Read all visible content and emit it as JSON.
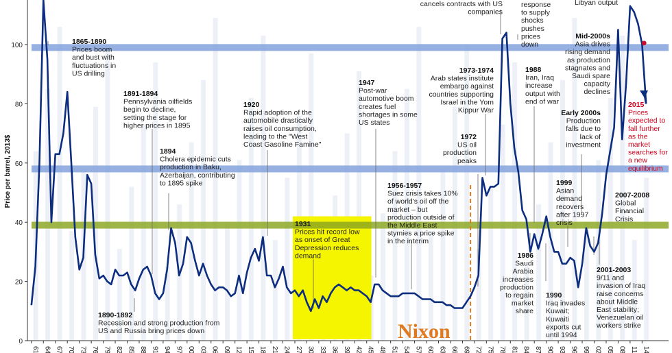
{
  "chart_data": {
    "type": "line",
    "ylabel": "Price per barrel, 2013$",
    "ylim": [
      0,
      113
    ],
    "xlim": [
      1860,
      2016
    ],
    "y_ticks": [
      0,
      20,
      40,
      60,
      80,
      100
    ],
    "x_tick_labels": [
      "61",
      "64",
      "67",
      "70",
      "73",
      "76",
      "79",
      "82",
      "85",
      "88",
      "91",
      "94",
      "97",
      "00",
      "03",
      "06",
      "09",
      "12",
      "15",
      "18",
      "21",
      "24",
      "27",
      "30",
      "33",
      "36",
      "39",
      "42",
      "45",
      "48",
      "51",
      "54",
      "57",
      "60",
      "63",
      "66",
      "69",
      "72",
      "75",
      "78",
      "81",
      "84",
      "87",
      "90",
      "93",
      "96",
      "99",
      "02",
      "05",
      "08",
      "11",
      "14"
    ],
    "x_tick_years": [
      1861,
      1864,
      1867,
      1870,
      1873,
      1876,
      1879,
      1882,
      1885,
      1888,
      1891,
      1894,
      1897,
      1900,
      1903,
      1906,
      1909,
      1912,
      1915,
      1918,
      1921,
      1924,
      1927,
      1930,
      1933,
      1936,
      1939,
      1942,
      1945,
      1948,
      1951,
      1954,
      1957,
      1960,
      1963,
      1966,
      1969,
      1972,
      1975,
      1978,
      1981,
      1984,
      1987,
      1990,
      1993,
      1996,
      1999,
      2002,
      2005,
      2008,
      2011,
      2014
    ],
    "series": [
      {
        "x": [
          1861,
          1862,
          1863,
          1864,
          1865,
          1866,
          1867,
          1868,
          1869,
          1870,
          1871,
          1872,
          1873,
          1874,
          1875,
          1876,
          1877,
          1878,
          1879,
          1880,
          1881,
          1882,
          1883,
          1884,
          1885,
          1886,
          1887,
          1888,
          1889,
          1890,
          1891,
          1892,
          1893,
          1894,
          1895,
          1896,
          1897,
          1898,
          1899,
          1900,
          1901,
          1902,
          1903,
          1904,
          1905,
          1906,
          1907,
          1908,
          1909,
          1910,
          1911,
          1912,
          1913,
          1914,
          1915,
          1916,
          1917,
          1918,
          1919,
          1920,
          1921,
          1922,
          1923,
          1924,
          1925,
          1926,
          1927,
          1928,
          1929,
          1930,
          1931,
          1932,
          1933,
          1934,
          1935,
          1936,
          1937,
          1938,
          1939,
          1940,
          1941,
          1942,
          1943,
          1944,
          1945,
          1946,
          1947,
          1948,
          1949,
          1950,
          1951,
          1952,
          1953,
          1954,
          1955,
          1956,
          1957,
          1958,
          1959,
          1960,
          1961,
          1962,
          1963,
          1964,
          1965,
          1966,
          1967,
          1968,
          1969,
          1970,
          1971,
          1972,
          1973,
          1974,
          1975,
          1976,
          1977,
          1978,
          1979,
          1980,
          1981,
          1982,
          1983,
          1984,
          1985,
          1986,
          1987,
          1988,
          1989,
          1990,
          1991,
          1992,
          1993,
          1994,
          1995,
          1996,
          1997,
          1998,
          1999,
          2000,
          2001,
          2002,
          2003,
          2004,
          2005,
          2006,
          2007,
          2008,
          2009,
          2010,
          2011,
          2012,
          2013,
          2014,
          2015
        ],
        "values": [
          12,
          25,
          60,
          115,
          95,
          40,
          63,
          63,
          70,
          84,
          60,
          35,
          24,
          28,
          56,
          53,
          29,
          21,
          22,
          20,
          19,
          24,
          22,
          22,
          23,
          19,
          17,
          21,
          24,
          25,
          22,
          16,
          14,
          16,
          24,
          38,
          33,
          22,
          26,
          35,
          33,
          27,
          22,
          26,
          22,
          19,
          17,
          18,
          18,
          17,
          15,
          16,
          22,
          16,
          23,
          28,
          31,
          27,
          35,
          22,
          22,
          18,
          21,
          25,
          18,
          16,
          17,
          15,
          17,
          13,
          10,
          14,
          11,
          15,
          13,
          16,
          18,
          19,
          18,
          17,
          18,
          17,
          17,
          16,
          15,
          13,
          19,
          19,
          17,
          16,
          15,
          15,
          15,
          16,
          16,
          16,
          16,
          15,
          14,
          14,
          14,
          13,
          13,
          13,
          12,
          12,
          11,
          11,
          11,
          13,
          15,
          18,
          22,
          55,
          49,
          52,
          52,
          53,
          102,
          104,
          80,
          65,
          57,
          44,
          41,
          30,
          36,
          31,
          36,
          42,
          35,
          30,
          30,
          26,
          26,
          28,
          27,
          18,
          26,
          38,
          32,
          30,
          33,
          43,
          56,
          64,
          72,
          105,
          68,
          87,
          113,
          111,
          107,
          100,
          80
        ]
      }
    ],
    "annotations": [
      {
        "title": "1865-1890",
        "lines": [
          "Prices boom",
          "and bust with",
          "fluctuations in",
          "US drilling"
        ]
      },
      {
        "title": "1891-1894",
        "lines": [
          "Pennsylvania oilfields",
          "begin to decline,",
          "setting the stage for",
          "higher prices in 1895"
        ]
      },
      {
        "title": "1894",
        "lines": [
          "Cholera epidemic cuts",
          "production in Baku,",
          "Azerbaijan, contributing",
          "to 1895 spike"
        ]
      },
      {
        "title": "1890-1892",
        "lines": [
          "Recession and strong production from",
          "US and Russia bring prices down"
        ]
      },
      {
        "title": "1920",
        "lines": [
          "Rapid adoption of the",
          "automobile drastically",
          "raises oil consumption,",
          "leading to the \"West",
          "Coast Gasoline Famine\""
        ]
      },
      {
        "title": "1931",
        "lines": [
          "Prices hit record low",
          "as onset of Great",
          "Depression reduces",
          "demand"
        ]
      },
      {
        "title": "1947",
        "lines": [
          "Post-war",
          "automotive boom",
          "creates fuel",
          "shortages in some",
          "US states"
        ]
      },
      {
        "title": "1956-1957",
        "lines": [
          "Suez crisis takes 10%",
          "of world's oil off the",
          "market – but",
          "production outside of",
          "the Middle East",
          "stymies a price spike",
          "in the interim"
        ]
      },
      {
        "title": "",
        "lines": [
          "cancels contracts with US",
          "companies"
        ]
      },
      {
        "title": "1973-1974",
        "lines": [
          "Arab states institute",
          "embargo against",
          "countries supporting",
          "Israel in the Yom",
          "Kippur War"
        ]
      },
      {
        "title": "1972",
        "lines": [
          "US oil",
          "production",
          "peaks"
        ]
      },
      {
        "title": "",
        "lines": [
          "response",
          "to supply",
          "shocks",
          "pushes",
          "prices",
          "down"
        ]
      },
      {
        "title": "1988",
        "lines": [
          "Iran, Iraq",
          "increase",
          "output with",
          "end of war"
        ]
      },
      {
        "title": "1986",
        "lines": [
          "Saudi",
          "Arabia",
          "increases",
          "production",
          "to regain",
          "market",
          "share"
        ]
      },
      {
        "title": "1990",
        "lines": [
          "Iraq invades",
          "Kuwait;",
          "Kuwaiti",
          "exports cut",
          "until 1994"
        ]
      },
      {
        "title": "1999",
        "lines": [
          "Asian",
          "demand",
          "recovers",
          "after 1997",
          "crisis"
        ]
      },
      {
        "title": "Early 2000s",
        "lines": [
          "Production",
          "falls due to",
          "lack of",
          "investment"
        ]
      },
      {
        "title": "",
        "lines": [
          "Libyan output"
        ]
      },
      {
        "title": "Mid-2000s",
        "lines": [
          "Asia drives",
          "rising demand",
          "as production",
          "stagnates and",
          "Saudi spare",
          "capacity",
          "declines"
        ]
      },
      {
        "title": "2015",
        "lines": [
          "Prices",
          "expected to",
          "fall further",
          "as the",
          "market",
          "searches for",
          "a new",
          "equilibrium"
        ]
      },
      {
        "title": "2007-2008",
        "lines": [
          "Global",
          "Financial",
          "Crisis"
        ]
      },
      {
        "title": "2001-2003",
        "lines": [
          "9/11 and",
          "invasion of Iraq",
          "raise concerns",
          "about Middle",
          "East stability;",
          "Venezuelan oil",
          "workers strike"
        ]
      }
    ],
    "nixon_label": "Nixon",
    "nixon_year": 1971,
    "highlight_period": [
      1927,
      1946
    ],
    "reference_levels": [
      {
        "value": 99,
        "color": "#7f9fdc"
      },
      {
        "value": 58,
        "color": "#7f9fdc"
      },
      {
        "value": 39,
        "color": "#8aa51e"
      }
    ],
    "colors": {
      "line": "#0d2d7f",
      "highlight": "#f5f500",
      "nixon": "#e07a1f",
      "forecast_marker": "#c8102e",
      "background_bars": "#e4e9f3"
    },
    "grid": false
  }
}
